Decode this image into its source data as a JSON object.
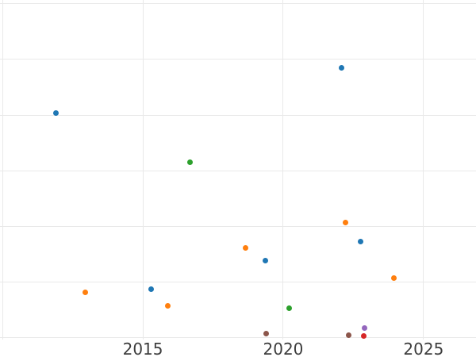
{
  "colors": {
    "background": "#ffffff",
    "gridline": "#e9e9e9",
    "tick_label": "#3d3d3d"
  },
  "chart_data": {
    "type": "scatter",
    "title": "",
    "xlabel": "",
    "ylabel": "",
    "grid": true,
    "legend": false,
    "marker_size_px": 7,
    "x_axis": {
      "range": [
        2009.91,
        2026.87
      ],
      "gridlines": [
        2010,
        2015,
        2020,
        2025
      ],
      "tick_positions": [
        2015,
        2020,
        2025
      ],
      "tick_labels": [
        "2015",
        "2020",
        "2025"
      ]
    },
    "y_axis": {
      "units": "gridline-units (bottom visible gridline = 0, one unit per gridline; numeric tick labels cropped out of view)",
      "range": [
        -0.04,
        6.07
      ],
      "gridlines": [
        0,
        1,
        2,
        3,
        4,
        5,
        6
      ],
      "tick_labels": []
    },
    "series": [
      {
        "name": "series-blue",
        "color": "#1f77b4",
        "points": [
          [
            2011.89,
            4.04
          ],
          [
            2015.3,
            0.87
          ],
          [
            2019.36,
            1.38
          ],
          [
            2022.08,
            4.85
          ],
          [
            2022.76,
            1.73
          ]
        ]
      },
      {
        "name": "series-orange",
        "color": "#ff7f0e",
        "points": [
          [
            2012.95,
            0.81
          ],
          [
            2015.9,
            0.56
          ],
          [
            2018.67,
            1.61
          ],
          [
            2022.22,
            2.07
          ],
          [
            2023.94,
            1.06
          ]
        ]
      },
      {
        "name": "series-green",
        "color": "#2ca02c",
        "points": [
          [
            2016.68,
            3.15
          ],
          [
            2020.21,
            0.53
          ]
        ]
      },
      {
        "name": "series-red",
        "color": "#d62728",
        "points": [
          [
            2022.86,
            0.02
          ]
        ]
      },
      {
        "name": "series-purple",
        "color": "#9467bd",
        "points": [
          [
            2022.91,
            0.17
          ]
        ]
      },
      {
        "name": "series-brown",
        "color": "#8c564b",
        "points": [
          [
            2019.38,
            0.07
          ],
          [
            2022.32,
            0.04
          ]
        ]
      }
    ]
  }
}
